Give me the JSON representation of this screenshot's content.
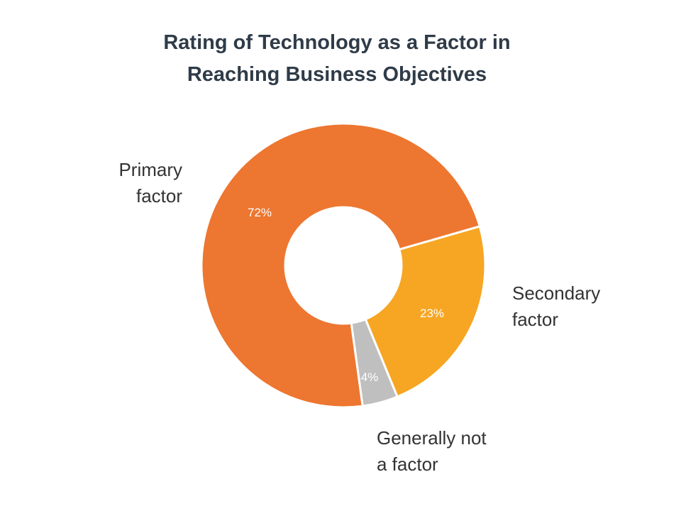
{
  "chart_data": {
    "type": "pie",
    "donut": true,
    "title_lines": [
      "Rating of Technology as a Factor in",
      "Reaching Business Objectives"
    ],
    "slices": [
      {
        "key": "primary",
        "category_lines": [
          "Primary",
          "factor"
        ],
        "value": 72,
        "data_label": "72%",
        "color": "#ed7630"
      },
      {
        "key": "secondary",
        "category_lines": [
          "Secondary",
          "factor"
        ],
        "value": 23,
        "data_label": "23%",
        "color": "#f6a623"
      },
      {
        "key": "not-factor",
        "category_lines": [
          "Generally not",
          "a factor"
        ],
        "value": 4,
        "data_label": "4%",
        "color": "#bfbfbf"
      }
    ],
    "start_slice": "secondary",
    "direction": "clockwise",
    "legend": "none"
  }
}
